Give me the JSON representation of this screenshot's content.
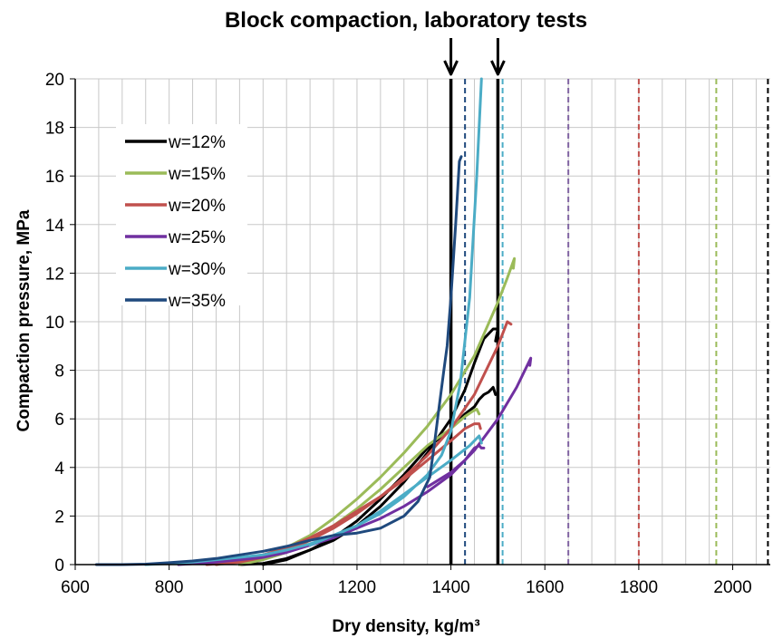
{
  "chart_data": {
    "type": "line",
    "title": "Block compaction,  laboratory tests",
    "xlabel": "Dry density, kg/m³",
    "ylabel": "Compaction pressure, MPa",
    "xlim": [
      600,
      2080
    ],
    "ylim": [
      0,
      20
    ],
    "xticks": [
      600,
      800,
      1000,
      1200,
      1400,
      1600,
      1800,
      2000
    ],
    "yticks": [
      0,
      2,
      4,
      6,
      8,
      10,
      12,
      14,
      16,
      18,
      20
    ],
    "x_minor_step": 50,
    "grid": true,
    "legend_position": "upper-left",
    "series": [
      {
        "name": "w=12%",
        "color": "#000000",
        "curves": [
          {
            "x": [
              950,
              1000,
              1050,
              1100,
              1150,
              1200,
              1250,
              1300,
              1350,
              1400,
              1430,
              1450,
              1470,
              1490,
              1500,
              1495
            ],
            "y": [
              0,
              0.05,
              0.25,
              0.6,
              1.0,
              1.6,
              2.4,
              3.4,
              4.6,
              6.0,
              7.2,
              8.3,
              9.3,
              9.7,
              9.7,
              9.2
            ]
          },
          {
            "x": [
              1000,
              1050,
              1100,
              1150,
              1200,
              1250,
              1300,
              1350,
              1400,
              1430,
              1450,
              1460,
              1470,
              1480,
              1490,
              1495
            ],
            "y": [
              0,
              0.2,
              0.6,
              1.1,
              1.8,
              2.7,
              3.7,
              4.8,
              5.6,
              6.2,
              6.5,
              6.8,
              7.0,
              7.1,
              7.3,
              7.0
            ]
          }
        ]
      },
      {
        "name": "w=15%",
        "color": "#9BBB59",
        "curves": [
          {
            "x": [
              900,
              950,
              1000,
              1050,
              1100,
              1150,
              1200,
              1250,
              1300,
              1350,
              1400,
              1450,
              1500,
              1520,
              1535,
              1533
            ],
            "y": [
              0,
              0.1,
              0.3,
              0.7,
              1.2,
              1.9,
              2.7,
              3.6,
              4.6,
              5.7,
              7.0,
              8.6,
              10.8,
              11.8,
              12.6,
              12.2
            ]
          },
          {
            "x": [
              950,
              1000,
              1050,
              1100,
              1150,
              1200,
              1250,
              1300,
              1350,
              1400,
              1430,
              1445,
              1455,
              1460
            ],
            "y": [
              0,
              0.2,
              0.5,
              1.0,
              1.6,
              2.3,
              3.1,
              4.0,
              4.9,
              5.6,
              6.1,
              6.3,
              6.4,
              6.2
            ]
          }
        ]
      },
      {
        "name": "w=20%",
        "color": "#C0504D",
        "curves": [
          {
            "x": [
              880,
              950,
              1000,
              1050,
              1100,
              1150,
              1200,
              1250,
              1300,
              1350,
              1400,
              1450,
              1500,
              1520,
              1528
            ],
            "y": [
              0,
              0.1,
              0.3,
              0.6,
              1.0,
              1.5,
              2.1,
              2.8,
              3.6,
              4.5,
              5.6,
              7.0,
              9.0,
              10.0,
              9.9
            ]
          },
          {
            "x": [
              900,
              950,
              1000,
              1050,
              1100,
              1150,
              1200,
              1250,
              1300,
              1350,
              1400,
              1430,
              1450,
              1460,
              1463
            ],
            "y": [
              0,
              0.2,
              0.4,
              0.7,
              1.1,
              1.6,
              2.2,
              2.8,
              3.5,
              4.3,
              5.1,
              5.6,
              5.8,
              5.8,
              5.6
            ]
          }
        ]
      },
      {
        "name": "w=25%",
        "color": "#7030A0",
        "curves": [
          {
            "x": [
              820,
              900,
              950,
              1000,
              1050,
              1100,
              1150,
              1200,
              1250,
              1300,
              1350,
              1400,
              1450,
              1500,
              1540,
              1570,
              1568
            ],
            "y": [
              0,
              0.1,
              0.2,
              0.3,
              0.5,
              0.8,
              1.1,
              1.5,
              1.9,
              2.4,
              3.0,
              3.7,
              4.7,
              6.0,
              7.3,
              8.5,
              8.2
            ]
          },
          {
            "x": [
              1350,
              1400,
              1430,
              1450,
              1460,
              1465,
              1470
            ],
            "y": [
              3.2,
              3.8,
              4.3,
              4.8,
              4.9,
              4.8,
              4.8
            ]
          }
        ]
      },
      {
        "name": "w=30%",
        "color": "#4BACC6",
        "curves": [
          {
            "x": [
              750,
              800,
              850,
              900,
              950,
              1000,
              1050,
              1100,
              1150,
              1200,
              1250,
              1300,
              1350,
              1380,
              1400,
              1420,
              1440,
              1455,
              1465
            ],
            "y": [
              0,
              0.05,
              0.1,
              0.2,
              0.3,
              0.4,
              0.6,
              0.85,
              1.2,
              1.6,
              2.1,
              2.8,
              3.7,
              4.5,
              5.5,
              7.5,
              11.0,
              16.0,
              20.0
            ]
          },
          {
            "x": [
              1100,
              1150,
              1200,
              1250,
              1300,
              1350,
              1400,
              1440,
              1460,
              1465
            ],
            "y": [
              0.8,
              1.2,
              1.6,
              2.2,
              2.9,
              3.6,
              4.3,
              4.9,
              5.3,
              5.0
            ]
          }
        ]
      },
      {
        "name": "w=35%",
        "color": "#1F497D",
        "curves": [
          {
            "x": [
              645,
              700,
              750,
              800,
              850,
              900,
              950,
              1000,
              1050,
              1100,
              1150,
              1200,
              1250,
              1300,
              1330,
              1355,
              1365,
              1375,
              1385,
              1392,
              1400,
              1410,
              1418,
              1422
            ],
            "y": [
              0,
              0,
              0.02,
              0.08,
              0.15,
              0.25,
              0.4,
              0.55,
              0.75,
              1.0,
              1.2,
              1.3,
              1.5,
              2.0,
              2.6,
              3.6,
              5.0,
              6.5,
              8.0,
              9.0,
              11.0,
              14.0,
              16.6,
              16.8
            ]
          }
        ]
      }
    ],
    "reference_lines": [
      {
        "x": 1400,
        "color": "#000000",
        "style": "solid"
      },
      {
        "x": 1500,
        "color": "#000000",
        "style": "solid"
      },
      {
        "x": 1430,
        "color": "#1F497D",
        "style": "dashed"
      },
      {
        "x": 1510,
        "color": "#4BACC6",
        "style": "dashed"
      },
      {
        "x": 1650,
        "color": "#8064A2",
        "style": "dashed"
      },
      {
        "x": 1800,
        "color": "#C0504D",
        "style": "dashed"
      },
      {
        "x": 1965,
        "color": "#9BBB59",
        "style": "dashed"
      },
      {
        "x": 2075,
        "color": "#000000",
        "style": "dashed"
      }
    ],
    "annotations": [
      {
        "type": "arrow",
        "x": 1400
      },
      {
        "type": "arrow",
        "x": 1500
      }
    ]
  }
}
